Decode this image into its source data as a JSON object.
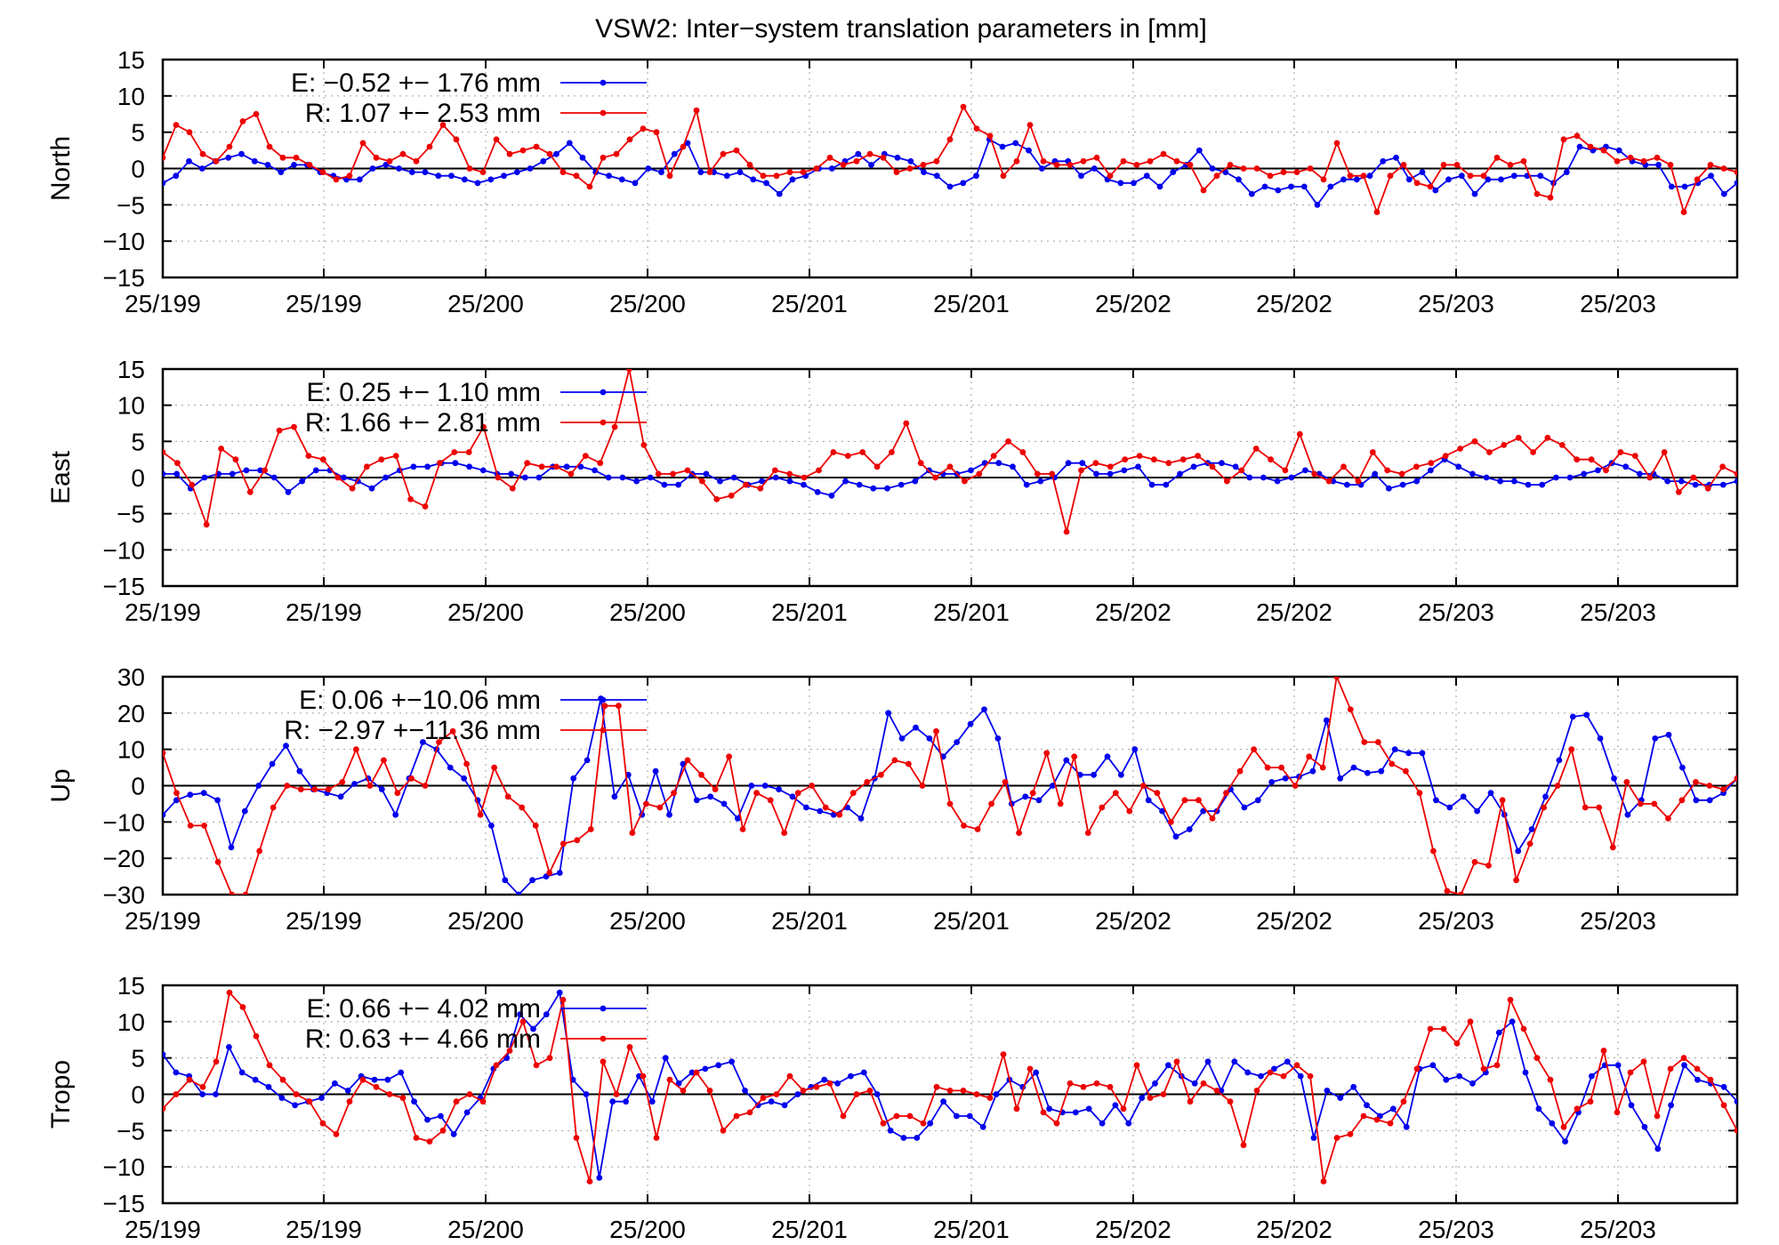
{
  "title": "VSW2: Inter−system translation parameters in [mm]",
  "colors": {
    "E": "#0000ee",
    "R": "#ee0000"
  },
  "x_tick_labels": [
    "25/199",
    "25/199",
    "25/200",
    "25/200",
    "25/201",
    "25/201",
    "25/202",
    "25/202",
    "25/203",
    "25/203"
  ],
  "chart_data": [
    {
      "type": "line",
      "ylabel": "North",
      "ylim": [
        -15,
        15
      ],
      "yticks": [
        15,
        10,
        5,
        0,
        -5,
        -10,
        -15
      ],
      "yticklabels": [
        "15",
        "10",
        "5",
        "0",
        "−5",
        "−10",
        "−15"
      ],
      "grid": "dotted",
      "legend_position": "top-left",
      "series": [
        {
          "name": "E",
          "legend": "E:  −0.52 +− 1.76 mm",
          "color": "#0000ee",
          "values": [
            -2,
            -1,
            1,
            0,
            1,
            1.5,
            2,
            1,
            0.5,
            -0.5,
            0.5,
            0.5,
            -0.5,
            -1,
            -1.5,
            -1.5,
            0,
            0.5,
            0,
            -0.5,
            -0.5,
            -1,
            -1,
            -1.5,
            -2,
            -1.5,
            -1,
            -0.5,
            0,
            1,
            2,
            3.5,
            1.5,
            -0.5,
            -1,
            -1.5,
            -2,
            0,
            -0.5,
            2,
            3.5,
            -0.5,
            -0.5,
            -1,
            -0.5,
            -1.5,
            -2,
            -3.5,
            -1.5,
            -1,
            0,
            0,
            1,
            2,
            0.5,
            2,
            1.5,
            1,
            -0.5,
            -1,
            -2.5,
            -2,
            -1,
            4,
            3,
            3.5,
            2.5,
            0,
            1,
            1,
            -1,
            0,
            -1.5,
            -2,
            -2,
            -1,
            -2.5,
            -0.5,
            0.5,
            2.5,
            0,
            -0.5,
            -1.5,
            -3.5,
            -2.5,
            -3,
            -2.5,
            -2.5,
            -5,
            -2.5,
            -1.5,
            -1.5,
            -1,
            1,
            1.5,
            -1.5,
            -0.5,
            -3,
            -1.5,
            -1,
            -3.5,
            -1.5,
            -1.5,
            -1,
            -1,
            -1,
            -2,
            -0.5,
            3,
            2.5,
            3,
            2.5,
            1,
            0.5,
            0.5,
            -2.5,
            -2.5,
            -2,
            -1,
            -3.5,
            -2
          ]
        },
        {
          "name": "R",
          "legend": "R:   1.07 +− 2.53 mm",
          "color": "#ee0000",
          "values": [
            1.5,
            6,
            5,
            2,
            1,
            3,
            6.5,
            7.5,
            3,
            1.5,
            1.5,
            0.5,
            -0.5,
            -1.5,
            -1,
            3.5,
            1.5,
            1,
            2,
            1,
            3,
            6,
            4,
            0,
            -0.5,
            4,
            2,
            2.5,
            3,
            2,
            -0.5,
            -1,
            -2.5,
            1.5,
            2,
            4,
            5.5,
            5,
            -1,
            3,
            8,
            -0.5,
            2,
            2.5,
            0.5,
            -1,
            -1,
            -0.5,
            -0.5,
            0,
            1.5,
            0.5,
            1,
            2,
            1.5,
            -0.5,
            0,
            0.5,
            1,
            4,
            8.5,
            5.5,
            4.5,
            -1,
            1,
            6,
            1,
            0.5,
            0.5,
            1,
            1.5,
            -1,
            1,
            0.5,
            1,
            2,
            1,
            0.5,
            -3,
            -1,
            0.5,
            0,
            0,
            -1,
            -0.5,
            -0.5,
            0,
            -1.5,
            3.5,
            -1,
            -1,
            -6,
            -1,
            0.5,
            -2,
            -2.5,
            0.5,
            0.5,
            -1,
            -1,
            1.5,
            0.5,
            1,
            -3.5,
            -4,
            4,
            4.5,
            3,
            2.5,
            1,
            1.5,
            1,
            1.5,
            0.5,
            -6,
            -1.5,
            0.5,
            0,
            -0.5
          ]
        }
      ]
    },
    {
      "type": "line",
      "ylabel": "East",
      "ylim": [
        -15,
        15
      ],
      "yticks": [
        15,
        10,
        5,
        0,
        -5,
        -10,
        -15
      ],
      "yticklabels": [
        "15",
        "10",
        "5",
        "0",
        "−5",
        "−10",
        "−15"
      ],
      "grid": "dotted",
      "legend_position": "top-left",
      "series": [
        {
          "name": "E",
          "legend": "E:   0.25 +− 1.10 mm",
          "color": "#0000ee",
          "values": [
            0.5,
            0.5,
            -1.5,
            0,
            0.5,
            0.5,
            1,
            1,
            0,
            -2,
            -0.5,
            1,
            1,
            0,
            -0.5,
            -1.5,
            0,
            1,
            1.5,
            1.5,
            2,
            2,
            1.5,
            1,
            0.5,
            0.5,
            0,
            0,
            1.5,
            1.5,
            1.5,
            1,
            0,
            0,
            -0.5,
            0,
            -1,
            -1,
            0.5,
            0.5,
            -0.5,
            0,
            -1,
            -0.5,
            0,
            -0.5,
            -1,
            -2,
            -2.5,
            -0.5,
            -1,
            -1.5,
            -1.5,
            -1,
            -0.5,
            1,
            0.5,
            0.5,
            1,
            2,
            2,
            1.5,
            -1,
            -0.5,
            0,
            2,
            2,
            0.5,
            0.5,
            1,
            1.5,
            -1,
            -1,
            0.5,
            1.5,
            2,
            2,
            1.5,
            0,
            0,
            -0.5,
            0,
            1,
            0.5,
            -0.5,
            -1,
            -1,
            0.5,
            -1.5,
            -1,
            -0.5,
            1,
            2.5,
            1.5,
            0.5,
            0,
            -0.5,
            -0.5,
            -1,
            -1,
            0,
            0,
            0.5,
            1,
            2,
            1.5,
            0.5,
            0.5,
            -0.5,
            -0.5,
            -1,
            -1,
            -1,
            -0.5
          ]
        },
        {
          "name": "R",
          "legend": "R:   1.66 +− 2.81 mm",
          "color": "#ee0000",
          "values": [
            3.5,
            2,
            -1,
            -6.5,
            4,
            2.5,
            -2,
            1,
            6.5,
            7,
            3,
            2.5,
            0,
            -1.5,
            1.5,
            2.5,
            3,
            -3,
            -4,
            2,
            3.5,
            3.5,
            7,
            0,
            -1.5,
            2,
            1.5,
            1.5,
            0.5,
            3,
            2,
            7,
            15,
            4.5,
            0.5,
            0.5,
            1,
            -0.5,
            -3,
            -2.5,
            -1,
            -1.5,
            1,
            0.5,
            0,
            1,
            3.5,
            3,
            3.5,
            1.5,
            3.5,
            7.5,
            2,
            0,
            1.5,
            -0.5,
            0.5,
            3,
            5,
            3.5,
            0.5,
            0.5,
            -7.5,
            1,
            2,
            1.5,
            2.5,
            3,
            2.5,
            2,
            2.5,
            3,
            1.5,
            -0.5,
            1,
            4,
            2.5,
            1,
            6,
            0.5,
            -0.5,
            1.5,
            -0.5,
            3.5,
            1,
            0.5,
            1.5,
            2,
            3,
            4,
            5,
            3.5,
            4.5,
            5.5,
            3.5,
            5.5,
            4.5,
            2.5,
            2.5,
            1,
            3.5,
            3,
            0,
            3.5,
            -2,
            0,
            -1.5,
            1.5,
            0.5
          ]
        }
      ]
    },
    {
      "type": "line",
      "ylabel": "Up",
      "ylim": [
        -30,
        30
      ],
      "yticks": [
        30,
        20,
        10,
        0,
        -10,
        -20,
        -30
      ],
      "yticklabels": [
        "30",
        "20",
        "10",
        "0",
        "−10",
        "−20",
        "−30"
      ],
      "grid": "dotted",
      "legend_position": "top-left",
      "series": [
        {
          "name": "E",
          "legend": "E:   0.06 +−10.06 mm",
          "color": "#0000ee",
          "values": [
            -8,
            -4,
            -2.5,
            -2,
            -4,
            -17,
            -7,
            0,
            6,
            11,
            4,
            -1,
            -2,
            -3,
            0.5,
            2,
            -1,
            -8,
            2,
            12,
            10,
            5,
            2,
            -4,
            -11,
            -26,
            -30,
            -26,
            -25,
            -24,
            2,
            7,
            24,
            -3,
            3,
            -8,
            4,
            -8,
            6,
            -4,
            -3,
            -5,
            -9,
            0,
            0,
            -1,
            -3,
            -6,
            -7,
            -8,
            -6,
            -9,
            2,
            20,
            13,
            16,
            13,
            8,
            12,
            17,
            21,
            13,
            -5,
            -3,
            -4,
            0,
            7,
            3,
            3,
            8,
            3,
            10,
            -4,
            -7,
            -14,
            -12,
            -7,
            -7,
            -1,
            -6,
            -4,
            1,
            2,
            2.5,
            4,
            18,
            2,
            5,
            3.5,
            4,
            10,
            9,
            9,
            -4,
            -6,
            -3,
            -7,
            -2,
            -8,
            -18,
            -12,
            -3,
            7,
            19,
            19.5,
            13,
            2,
            -8,
            -4,
            13,
            14,
            5,
            -4,
            -4,
            -2,
            2
          ]
        },
        {
          "name": "R",
          "legend": "R: −2.97 +−11.36 mm",
          "color": "#ee0000",
          "values": [
            9,
            -2,
            -11,
            -11,
            -21,
            -30,
            -30,
            -18,
            -6,
            0,
            -1,
            -1,
            -1,
            1,
            10,
            0,
            7,
            -2,
            2,
            0,
            12,
            15,
            6,
            -8,
            5,
            -3,
            -6,
            -11,
            -24,
            -16,
            -15,
            -12,
            22,
            22,
            -13,
            -5,
            -6,
            -2,
            7,
            3,
            -1,
            8,
            -12,
            -2,
            -4,
            -13,
            -2,
            0,
            -6,
            -8,
            -2,
            1,
            3,
            7,
            6,
            0,
            15,
            -5,
            -11,
            -12,
            -5,
            1,
            -13,
            -2,
            9,
            -5,
            8,
            -13,
            -6,
            -2,
            -7,
            0,
            -2,
            -10,
            -4,
            -4,
            -9,
            -2,
            4,
            10,
            5,
            5,
            0,
            8,
            5,
            30,
            21,
            12,
            12,
            6,
            4,
            -2,
            -18,
            -29,
            -30,
            -21,
            -22,
            -4,
            -26,
            -16,
            -6,
            0,
            10,
            -6,
            -6,
            -17,
            1,
            -5,
            -5,
            -9,
            -4,
            1,
            0,
            -1,
            2
          ]
        }
      ]
    },
    {
      "type": "line",
      "ylabel": "Tropo",
      "ylim": [
        -15,
        15
      ],
      "yticks": [
        15,
        10,
        5,
        0,
        -5,
        -10,
        -15
      ],
      "yticklabels": [
        "15",
        "10",
        "5",
        "0",
        "−5",
        "−10",
        "−15"
      ],
      "grid": "dotted",
      "legend_position": "top-left",
      "series": [
        {
          "name": "E",
          "legend": "E:   0.66 +− 4.02 mm",
          "color": "#0000ee",
          "values": [
            5.5,
            3,
            2.5,
            0,
            0,
            6.5,
            3,
            2,
            1,
            -0.5,
            -1.5,
            -1,
            -0.5,
            1.5,
            0.5,
            2.5,
            2,
            2,
            3,
            -1,
            -3.5,
            -3,
            -5.5,
            -2.5,
            -0.5,
            3.5,
            5,
            11,
            9,
            11,
            14,
            2,
            0,
            -11.5,
            -1,
            -1,
            2.5,
            -1,
            5,
            1.5,
            3,
            3.5,
            4,
            4.5,
            0.5,
            -1.5,
            -1,
            -1.5,
            0,
            1,
            2,
            1.5,
            2.5,
            3,
            0,
            -5,
            -6,
            -6,
            -4,
            -1,
            -3,
            -3,
            -4.5,
            0,
            2,
            1,
            3,
            -2,
            -2.5,
            -2.5,
            -2,
            -4,
            -1.5,
            -4,
            -0.5,
            1.5,
            4,
            2.5,
            1.5,
            4.5,
            0.5,
            4.5,
            3,
            2.5,
            3.5,
            4.5,
            2.5,
            -6,
            0.5,
            -0.5,
            1,
            -1.5,
            -3,
            -2,
            -4.5,
            3.5,
            4,
            2,
            2.5,
            1.5,
            3,
            8.5,
            10,
            3,
            -2,
            -4,
            -6.5,
            -2.5,
            2.5,
            4,
            4,
            -1.5,
            -4.5,
            -7.5,
            -1.5,
            4,
            2,
            1.5,
            1,
            -1
          ]
        },
        {
          "name": "R",
          "legend": "R:   0.63 +− 4.66 mm",
          "color": "#ee0000",
          "values": [
            -2,
            0,
            2,
            1,
            4.5,
            14,
            12,
            8,
            4,
            2,
            0,
            -1,
            -4,
            -5.5,
            -1,
            2,
            1,
            0,
            -0.5,
            -6,
            -6.5,
            -5,
            -1,
            0,
            -1,
            4,
            6,
            10,
            4,
            5,
            13,
            -6,
            -12,
            4.5,
            0,
            6.5,
            2.5,
            -6,
            2,
            0.5,
            3,
            0.5,
            -5,
            -3,
            -2.5,
            -0.5,
            0,
            2.5,
            0.5,
            1,
            1.5,
            -3,
            0,
            0.5,
            -4,
            -3,
            -3,
            -4,
            1,
            0.5,
            0.5,
            0,
            -0.5,
            5.5,
            -2,
            3.5,
            -2.5,
            -4,
            1.5,
            1,
            1.5,
            1,
            -2,
            4,
            -0.5,
            0,
            4.5,
            -1,
            1.5,
            0.5,
            -1,
            -7,
            0.5,
            3,
            2.5,
            4,
            2.5,
            -12,
            -6,
            -5.5,
            -3,
            -3.5,
            -4,
            -1,
            3.5,
            9,
            9,
            7,
            10,
            3.5,
            4,
            13,
            9,
            5,
            2,
            -4.5,
            -2,
            -1,
            6,
            -2.5,
            3,
            4.5,
            -3,
            3.5,
            5,
            3.5,
            2,
            -1.5,
            -5
          ]
        }
      ]
    }
  ]
}
